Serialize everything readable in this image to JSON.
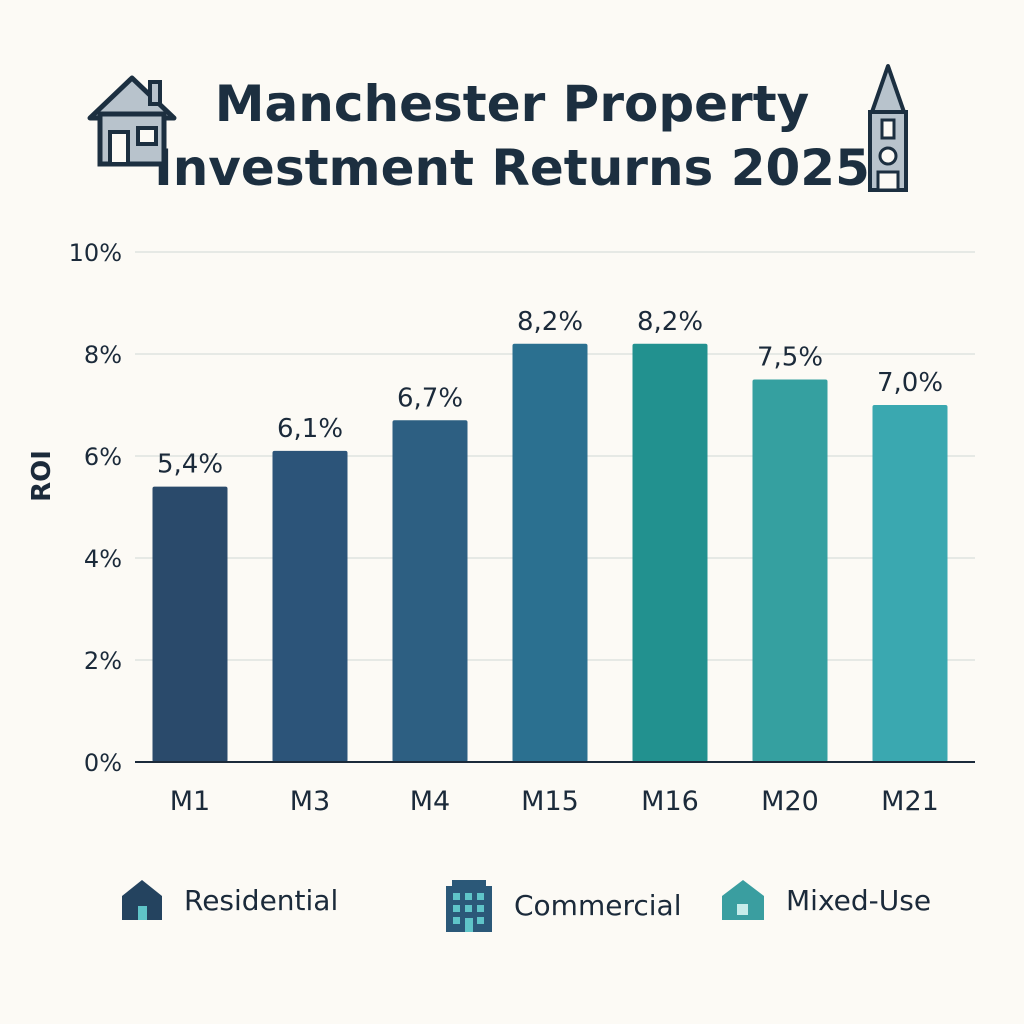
{
  "chart_data": {
    "type": "bar",
    "title": "Manchester Property Investment Returns 2025",
    "ylabel": "ROI",
    "xlabel": "",
    "categories": [
      "M1",
      "M3",
      "M4",
      "M15",
      "M16",
      "M20",
      "M21"
    ],
    "values": [
      5.4,
      6.1,
      6.7,
      8.2,
      8.2,
      7.5,
      7.0
    ],
    "data_labels": [
      "5,4%",
      "6,1%",
      "6,7%",
      "8,2%",
      "8,2%",
      "7,5%",
      "7,0%"
    ],
    "ylim": [
      0,
      10
    ],
    "yticks": [
      0,
      2,
      4,
      6,
      8,
      10
    ],
    "ytick_labels": [
      "0%",
      "2%",
      "4%",
      "6%",
      "8%",
      "10%"
    ],
    "grid": true,
    "bar_colors": [
      "#2a4a6b",
      "#2c5479",
      "#2d5f82",
      "#2b7090",
      "#22918f",
      "#35a0a0",
      "#3aa8b0"
    ],
    "legend_placement": "bottom",
    "legend": [
      {
        "label": "Residential",
        "icon": "house-icon",
        "color": "#24435f"
      },
      {
        "label": "Commercial",
        "icon": "office-building-icon",
        "color": "#2b5878"
      },
      {
        "label": "Mixed-Use",
        "icon": "house-icon",
        "color": "#3a9ea0"
      }
    ]
  }
}
